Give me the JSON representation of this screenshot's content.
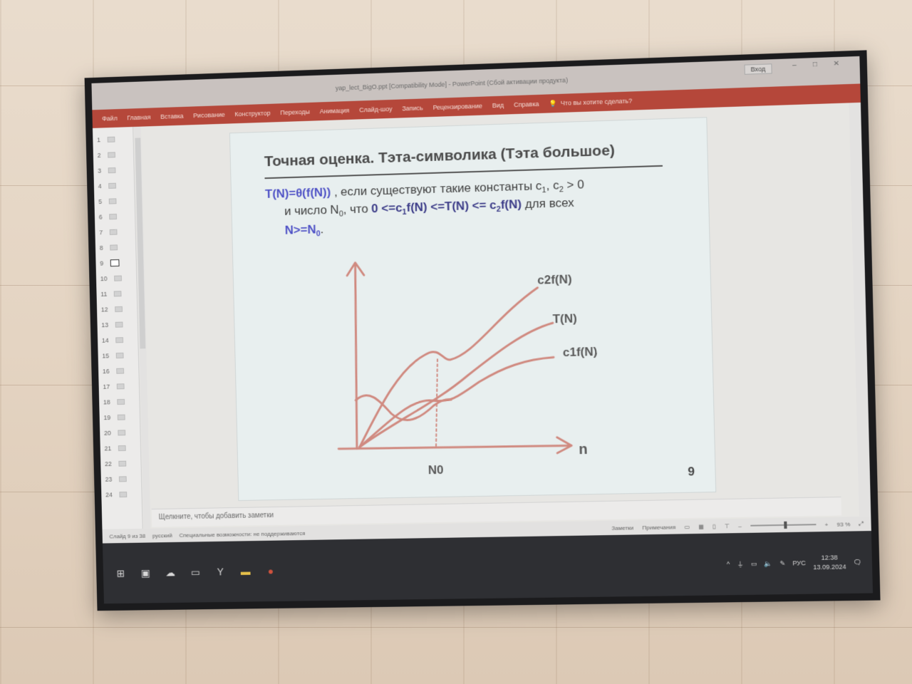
{
  "window": {
    "document_title": "yap_lect_BigO.ppt [Compatibility Mode] - PowerPoint (Сбой активации продукта)",
    "login_button": "Вход"
  },
  "ribbon": {
    "tabs": [
      "Файл",
      "Главная",
      "Вставка",
      "Рисование",
      "Конструктор",
      "Переходы",
      "Анимация",
      "Слайд-шоу",
      "Запись",
      "Рецензирование",
      "Вид",
      "Справка"
    ],
    "search_placeholder": "Что вы хотите сделать?"
  },
  "thumbnails": [
    "1",
    "2",
    "3",
    "4",
    "5",
    "6",
    "7",
    "8",
    "9",
    "10",
    "11",
    "12",
    "13",
    "14",
    "15",
    "16",
    "17",
    "18",
    "19",
    "20",
    "21",
    "22",
    "23",
    "24"
  ],
  "active_thumbnail": "9",
  "slide": {
    "title": "Точная оценка. Тэта-символика (Тэта большое)",
    "line1_formula": "T(N)=θ(f(N))",
    "line1_text": " , если существуют такие константы c",
    "line1_sub1": "1",
    "line1_mid": ", c",
    "line1_sub2": "2",
    "line1_end": " > 0",
    "line2_text": "и число N",
    "line2_sub0": "0",
    "line2_mid": ", что ",
    "line2_ineq_a": "0 <=c",
    "line2_sub1": "1",
    "line2_ineq_b": "f(N) <=T(N) <= c",
    "line2_sub2": "2",
    "line2_ineq_c": "f(N)",
    "line2_end": " для всех",
    "line3_text": "N>=N",
    "line3_sub": "0",
    "line3_end": ".",
    "graph": {
      "label_c2f": "c2f(N)",
      "label_T": "T(N)",
      "label_c1f": "c1f(N)",
      "label_N0": "N0",
      "label_n": "n",
      "line_color": "#d08a80"
    },
    "page_number": "9"
  },
  "notes_placeholder": "Щелкните, чтобы добавить заметки",
  "status": {
    "slide_counter": "Слайд 9 из 38",
    "language": "русский",
    "accessibility": "Специальные возможности: не поддерживаются",
    "notes_button": "Заметки",
    "comments_button": "Примечания",
    "zoom": "93 %"
  },
  "taskbar": {
    "language": "РУС",
    "time": "12:38",
    "date": "13.09.2024"
  }
}
